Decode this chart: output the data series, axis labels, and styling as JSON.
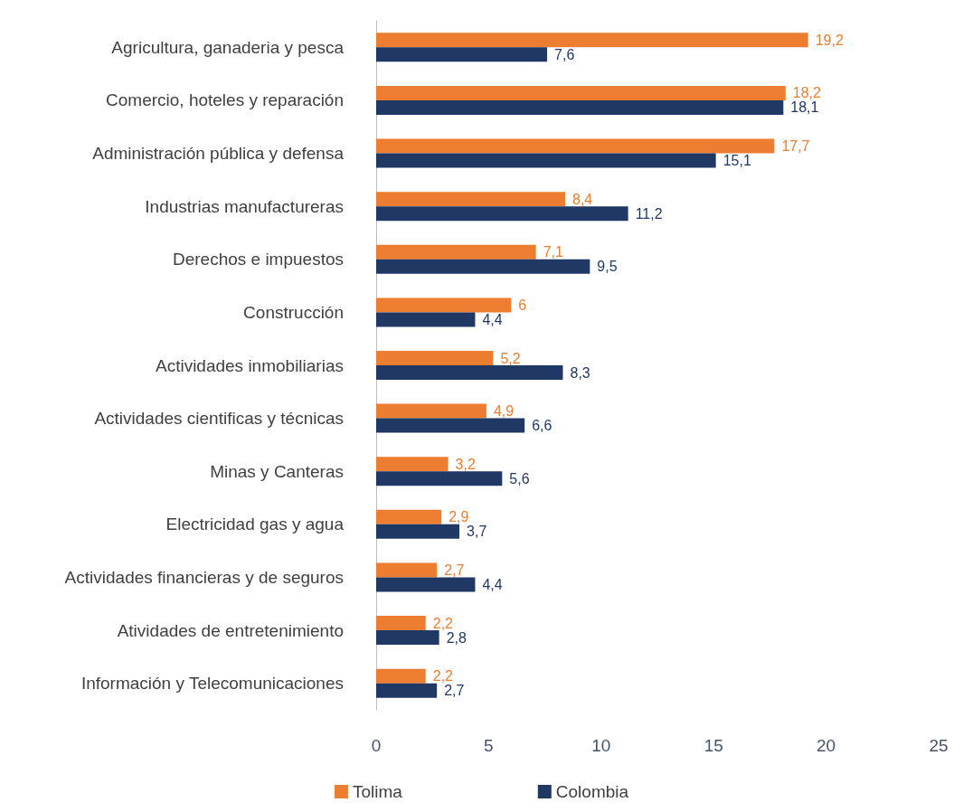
{
  "chart_data": {
    "type": "bar",
    "orientation": "horizontal",
    "categories": [
      "Agricultura, ganaderia y pesca",
      "Comercio, hoteles y reparación",
      "Administración pública y defensa",
      "Industrias manufactureras",
      "Derechos e impuestos",
      "Construcción",
      "Actividades inmobiliarias",
      "Actividades cientificas y técnicas",
      "Minas y Canteras",
      "Electricidad gas y agua",
      "Actividades financieras y de seguros",
      "Atividades de entretenimiento",
      "Información y Telecomunicaciones"
    ],
    "series": [
      {
        "name": "Tolima",
        "color": "#ed7d31",
        "values": [
          19.2,
          18.2,
          17.7,
          8.4,
          7.1,
          6,
          5.2,
          4.9,
          3.2,
          2.9,
          2.7,
          2.2,
          2.2
        ],
        "value_labels": [
          "19,2",
          "18,2",
          "17,7",
          "8,4",
          "7,1",
          "6",
          "5,2",
          "4,9",
          "3,2",
          "2,9",
          "2,7",
          "2,2",
          "2,2"
        ]
      },
      {
        "name": "Colombia",
        "color": "#203864",
        "values": [
          7.6,
          18.1,
          15.1,
          11.2,
          9.5,
          4.4,
          8.3,
          6.6,
          5.6,
          3.7,
          4.4,
          2.8,
          2.7
        ],
        "value_labels": [
          "7,6",
          "18,1",
          "15,1",
          "11,2",
          "9,5",
          "4,4",
          "8,3",
          "6,6",
          "5,6",
          "3,7",
          "4,4",
          "2,8",
          "2,7"
        ]
      }
    ],
    "xlim": [
      0,
      25
    ],
    "xticks": [
      0,
      5,
      10,
      15,
      20,
      25
    ],
    "grid": false,
    "legend": "bottom"
  }
}
